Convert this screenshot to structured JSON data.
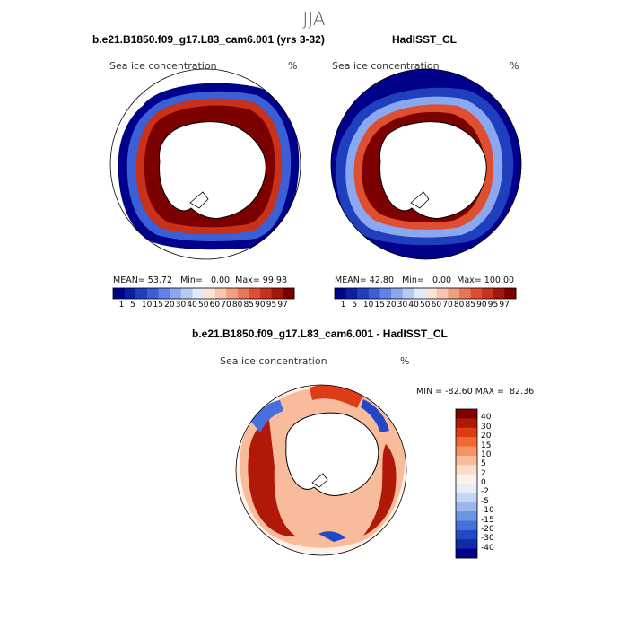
{
  "season": "JJA",
  "units": "%",
  "variable": "Sea ice concentration",
  "panels": [
    {
      "title": "b.e21.B1850.f09_g17.L83_cam6.001 (yrs 3-32)",
      "mean_label": "MEAN=",
      "mean": "53.72",
      "min_label": "Min=",
      "min": "0.00",
      "max_label": "Max=",
      "max": "99.98"
    },
    {
      "title": "HadISST_CL",
      "mean_label": "MEAN=",
      "mean": "42.80",
      "min_label": "Min=",
      "min": "0.00",
      "max_label": "Max=",
      "max": "100.00"
    }
  ],
  "diff": {
    "title": "b.e21.B1850.f09_g17.L83_cam6.001 - HadISST_CL",
    "min_label": "MIN =",
    "min": "-82.60",
    "max_label": "MAX =",
    "max": "82.36"
  },
  "abs_colorbar": {
    "colors": [
      "#00008b",
      "#0a1fa6",
      "#1f3fbf",
      "#3a5fd6",
      "#5f83e8",
      "#89a8f0",
      "#b7caf6",
      "#e2ebfb",
      "#fbe5da",
      "#f7c6ad",
      "#f2a083",
      "#ea7658",
      "#de4f31",
      "#c8311a",
      "#a41708",
      "#7d0000"
    ],
    "tick_labels": [
      "1",
      "5",
      "10",
      "15",
      "20",
      "30",
      "40",
      "50",
      "60",
      "70",
      "80",
      "85",
      "90",
      "95",
      "97"
    ]
  },
  "diff_colorbar": {
    "colors": [
      "#7d0000",
      "#b01808",
      "#dd3d16",
      "#ef6a30",
      "#f49465",
      "#f8bb9c",
      "#fbdcc8",
      "#fdf1e8",
      "#e6eef9",
      "#c2d5f3",
      "#9ab6ec",
      "#6e93e3",
      "#4670db",
      "#2248c8",
      "#0f2ba8",
      "#00008b"
    ],
    "tick_labels": [
      "40",
      "30",
      "20",
      "15",
      "10",
      "5",
      "2",
      "0",
      "-2",
      "-5",
      "-10",
      "-15",
      "-20",
      "-30",
      "-40"
    ]
  },
  "chart_data": [
    {
      "type": "heatmap",
      "title": "b.e21.B1850.f09_g17.L83_cam6.001 (yrs 3-32)",
      "field": "Sea ice concentration",
      "units": "%",
      "projection": "south polar stereographic",
      "mean": 53.72,
      "min": 0.0,
      "max": 99.98,
      "levels": [
        1,
        5,
        10,
        15,
        20,
        30,
        40,
        50,
        60,
        70,
        80,
        85,
        90,
        95,
        97
      ]
    },
    {
      "type": "heatmap",
      "title": "HadISST_CL",
      "field": "Sea ice concentration",
      "units": "%",
      "projection": "south polar stereographic",
      "mean": 42.8,
      "min": 0.0,
      "max": 100.0,
      "levels": [
        1,
        5,
        10,
        15,
        20,
        30,
        40,
        50,
        60,
        70,
        80,
        85,
        90,
        95,
        97
      ]
    },
    {
      "type": "heatmap",
      "title": "b.e21.B1850.f09_g17.L83_cam6.001 - HadISST_CL",
      "field": "Sea ice concentration",
      "units": "%",
      "projection": "south polar stereographic",
      "min": -82.6,
      "max": 82.36,
      "levels": [
        -40,
        -30,
        -20,
        -15,
        -10,
        -5,
        -2,
        0,
        2,
        5,
        10,
        15,
        20,
        30,
        40
      ]
    }
  ]
}
